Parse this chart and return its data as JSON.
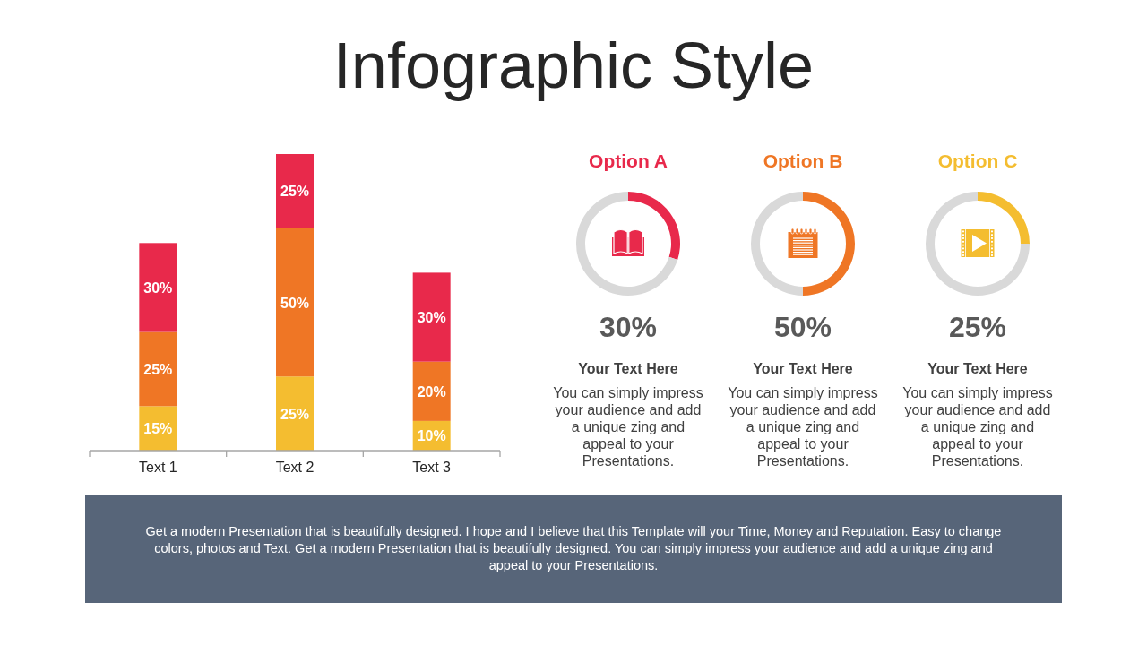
{
  "chart_data": [
    {
      "type": "bar",
      "title": "Infographic Style",
      "categories": [
        "Text 1",
        "Text 2",
        "Text 3"
      ],
      "stacked": true,
      "series": [
        {
          "color": "#f4bd30",
          "values": [
            15,
            25,
            10
          ],
          "value_labels": [
            "15%",
            "25%",
            "10%"
          ]
        },
        {
          "color": "#ef7625",
          "values": [
            25,
            50,
            20
          ],
          "value_labels": [
            "25%",
            "50%",
            "20%"
          ]
        },
        {
          "color": "#e8294b",
          "values": [
            30,
            25,
            30
          ],
          "value_labels": [
            "30%",
            "25%",
            "30%"
          ]
        }
      ]
    },
    {
      "type": "donut",
      "title": "Option A",
      "categories": [
        null,
        null
      ],
      "values": [
        30,
        70
      ],
      "colors": [
        "#e8294b",
        "#d9d9d9"
      ],
      "annotations": [
        "30%",
        "Your Text Here",
        "You can simply impress your audience and add a unique zing and appeal to your Presentations."
      ]
    },
    {
      "type": "donut",
      "title": "Option B",
      "categories": [
        null,
        null
      ],
      "values": [
        50,
        50
      ],
      "colors": [
        "#ef7625",
        "#d9d9d9"
      ],
      "annotations": [
        "50%",
        "Your Text Here",
        "You can simply impress your audience and add a unique zing and appeal to your Presentations."
      ]
    },
    {
      "type": "donut",
      "title": "Option C",
      "categories": [
        null,
        null
      ],
      "values": [
        25,
        75
      ],
      "colors": [
        "#f4bd30",
        "#d9d9d9"
      ],
      "annotations": [
        "25%",
        "Your Text Here",
        "You can simply impress your audience and add a unique zing and appeal to your Presentations."
      ]
    },
    {
      "type": "other",
      "color": "#576579",
      "annotations": [
        "Get a modern Presentation that is beautifully designed. I hope and I believe that this Template will your Time, Money and Reputation. Easy to change colors, photos and Text. Get a modern Presentation that is beautifully designed. You can simply impress your audience and add a unique zing and appeal to your Presentations."
      ]
    }
  ]
}
